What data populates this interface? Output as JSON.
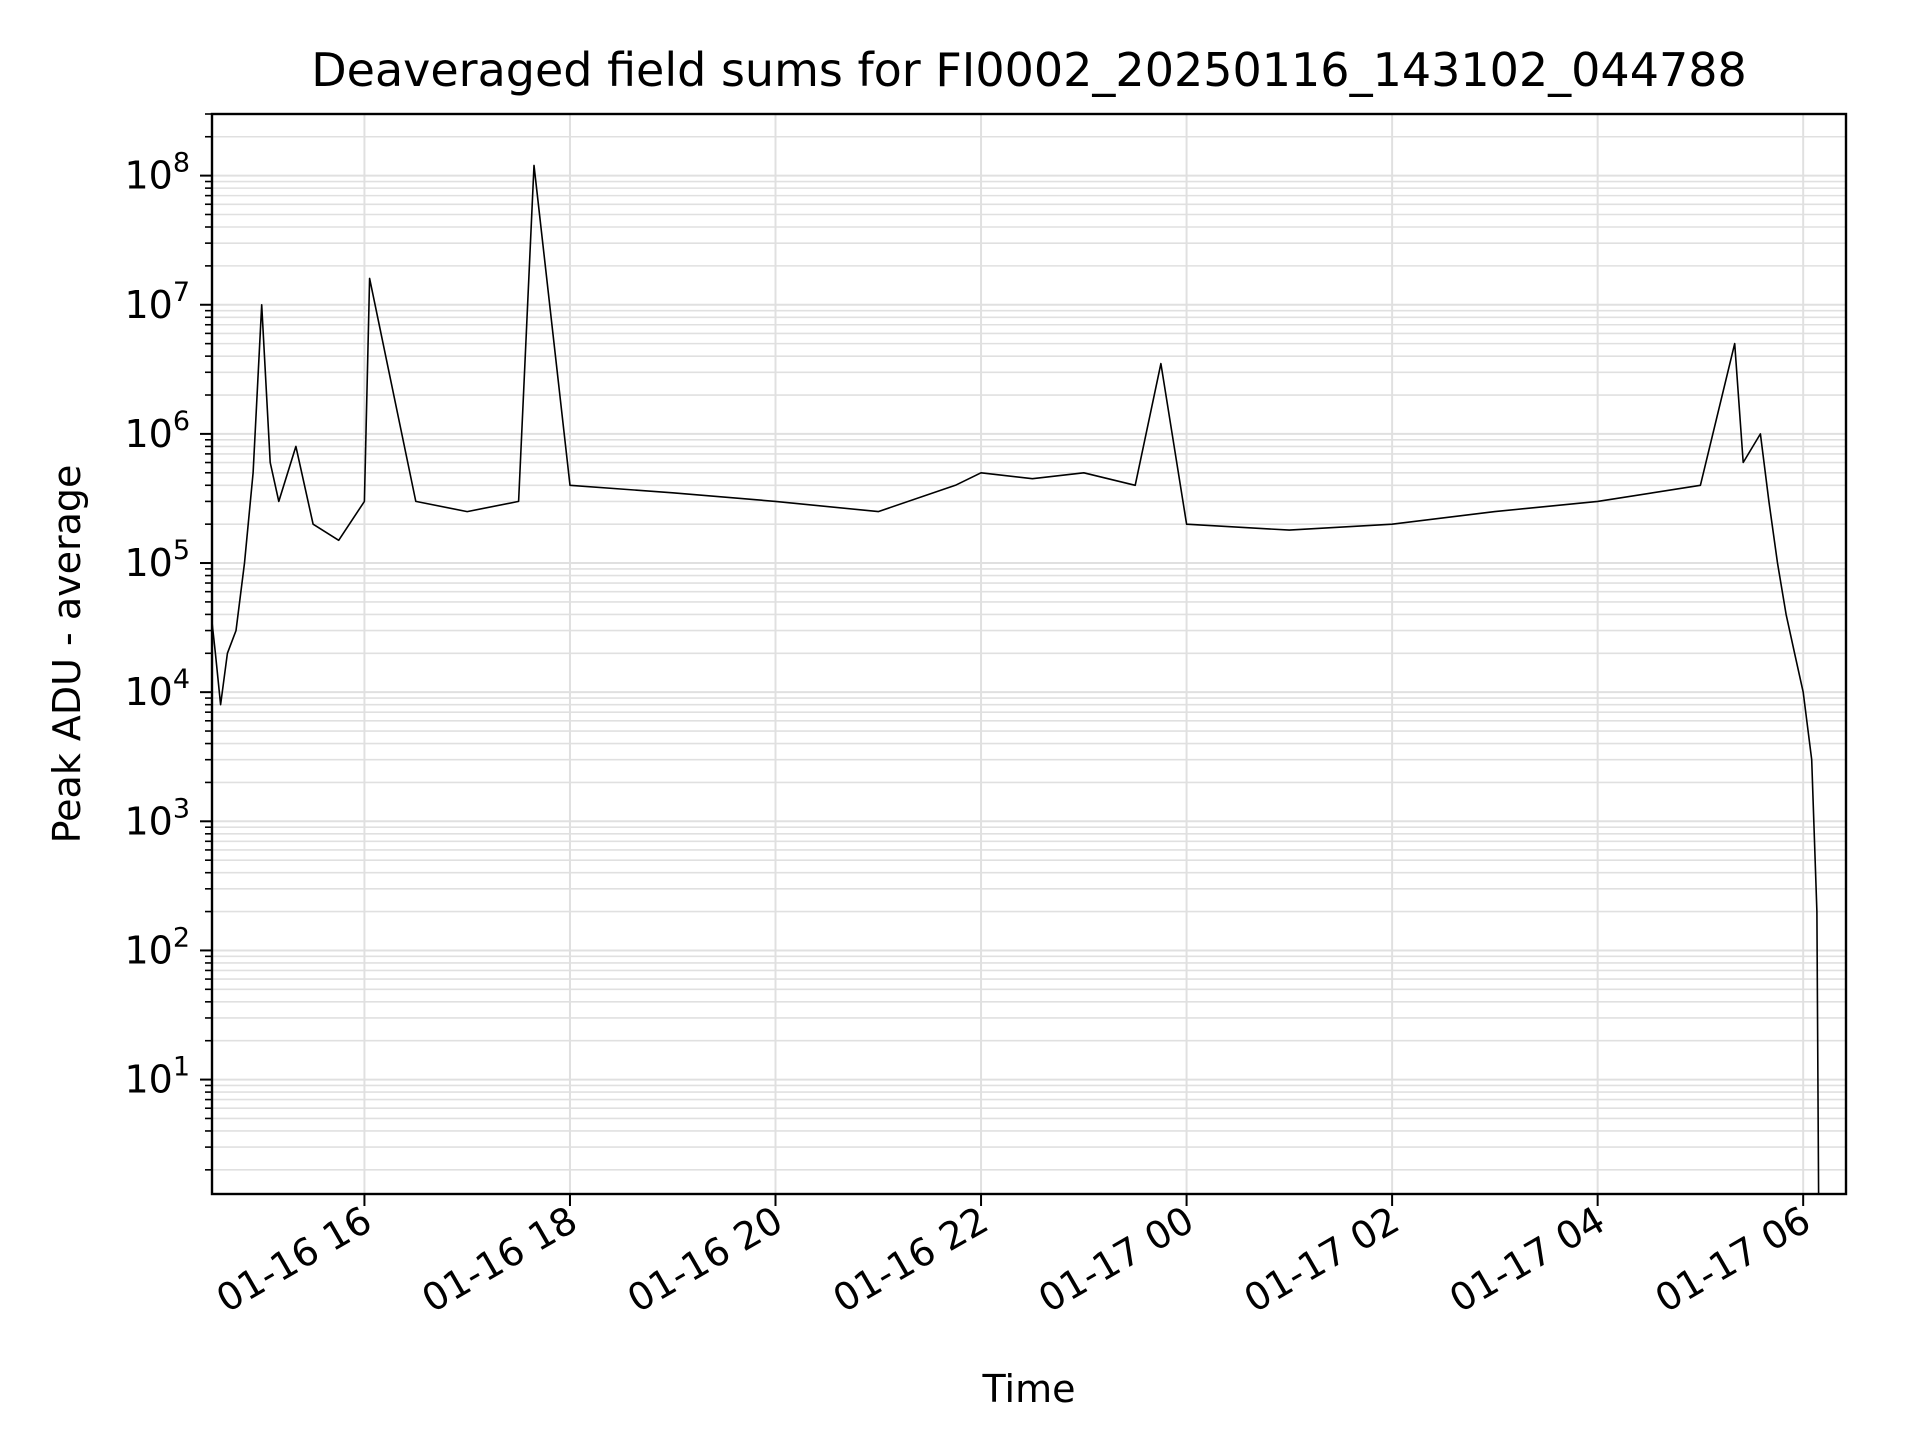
{
  "chart_data": {
    "type": "line",
    "title": "Deaveraged field sums for FI0002_20250116_143102_044788",
    "xlabel": "Time",
    "ylabel": "Peak ADU - average",
    "y_scale": "log",
    "grid": true,
    "grid_minor": true,
    "line_color": "#000000",
    "grid_color": "#e0e0e0",
    "xlim": [
      "2025-01-16 14:31",
      "2025-01-17 06:25"
    ],
    "ylim": [
      1.3,
      300000000
    ],
    "x_ticks": [
      {
        "value": "2025-01-16 16:00",
        "label": "01-16 16"
      },
      {
        "value": "2025-01-16 18:00",
        "label": "01-16 18"
      },
      {
        "value": "2025-01-16 20:00",
        "label": "01-16 20"
      },
      {
        "value": "2025-01-16 22:00",
        "label": "01-16 22"
      },
      {
        "value": "2025-01-17 00:00",
        "label": "01-17 00"
      },
      {
        "value": "2025-01-17 02:00",
        "label": "01-17 02"
      },
      {
        "value": "2025-01-17 04:00",
        "label": "01-17 04"
      },
      {
        "value": "2025-01-17 06:00",
        "label": "01-17 06"
      }
    ],
    "y_ticks": [
      {
        "value": 10,
        "base": "10",
        "exp": "1"
      },
      {
        "value": 100,
        "base": "10",
        "exp": "2"
      },
      {
        "value": 1000,
        "base": "10",
        "exp": "3"
      },
      {
        "value": 10000,
        "base": "10",
        "exp": "4"
      },
      {
        "value": 100000,
        "base": "10",
        "exp": "5"
      },
      {
        "value": 1000000,
        "base": "10",
        "exp": "6"
      },
      {
        "value": 10000000,
        "base": "10",
        "exp": "7"
      },
      {
        "value": 100000000,
        "base": "10",
        "exp": "8"
      }
    ],
    "series": [
      {
        "x": [
          "2025-01-16 14:31",
          "2025-01-16 14:33",
          "2025-01-16 14:36",
          "2025-01-16 14:40",
          "2025-01-16 14:45",
          "2025-01-16 14:50",
          "2025-01-16 14:55",
          "2025-01-16 15:00",
          "2025-01-16 15:05",
          "2025-01-16 15:10",
          "2025-01-16 15:20",
          "2025-01-16 15:30",
          "2025-01-16 15:45",
          "2025-01-16 16:00",
          "2025-01-16 16:03",
          "2025-01-16 16:30",
          "2025-01-16 17:00",
          "2025-01-16 17:30",
          "2025-01-16 17:39",
          "2025-01-16 18:00",
          "2025-01-16 19:00",
          "2025-01-16 20:00",
          "2025-01-16 21:00",
          "2025-01-16 21:45",
          "2025-01-16 22:00",
          "2025-01-16 22:30",
          "2025-01-16 23:00",
          "2025-01-16 23:30",
          "2025-01-16 23:45",
          "2025-01-17 00:00",
          "2025-01-17 01:00",
          "2025-01-17 02:00",
          "2025-01-17 03:00",
          "2025-01-17 04:00",
          "2025-01-17 05:00",
          "2025-01-17 05:20",
          "2025-01-17 05:25",
          "2025-01-17 05:35",
          "2025-01-17 05:40",
          "2025-01-17 05:45",
          "2025-01-17 05:50",
          "2025-01-17 05:55",
          "2025-01-17 06:00",
          "2025-01-17 06:05",
          "2025-01-17 06:08",
          "2025-01-17 06:09"
        ],
        "y": [
          35000,
          20000,
          8000,
          20000,
          30000,
          100000,
          500000,
          10000000,
          600000,
          300000,
          800000,
          200000,
          150000,
          300000,
          16000000,
          300000,
          250000,
          300000,
          120000000,
          400000,
          350000,
          300000,
          250000,
          400000,
          500000,
          450000,
          500000,
          400000,
          3500000,
          200000,
          180000,
          200000,
          250000,
          300000,
          400000,
          5000000,
          600000,
          1000000,
          300000,
          100000,
          40000,
          20000,
          10000,
          3000,
          200,
          1.3
        ]
      }
    ]
  }
}
